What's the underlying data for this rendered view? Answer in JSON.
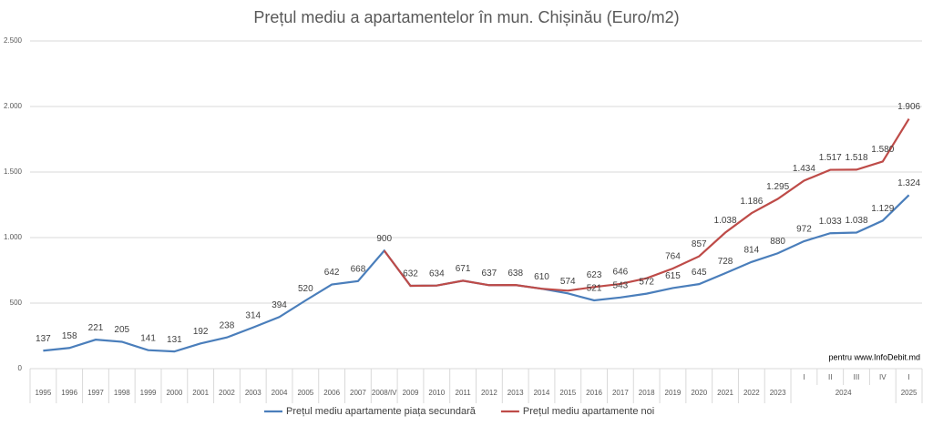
{
  "chart_data": {
    "type": "line",
    "title": "Prețul mediu a apartamentelor în mun. Chișinău (Euro/m2)",
    "annotation": "pentru www.InfoDebit.md",
    "categories": [
      "1995",
      "1996",
      "1997",
      "1998",
      "1999",
      "2000",
      "2001",
      "2002",
      "2003",
      "2004",
      "2005",
      "2006",
      "2007",
      "2008/IV",
      "2009",
      "2010",
      "2011",
      "2012",
      "2013",
      "2014",
      "2015",
      "2016",
      "2017",
      "2018",
      "2019",
      "2020",
      "2021",
      "2022",
      "2023",
      "I",
      "II",
      "III",
      "IV",
      "I"
    ],
    "category_groups": [
      null,
      null,
      null,
      null,
      null,
      null,
      null,
      null,
      null,
      null,
      null,
      null,
      null,
      null,
      null,
      null,
      null,
      null,
      null,
      null,
      null,
      null,
      null,
      null,
      null,
      null,
      null,
      null,
      null,
      "2024",
      "2024",
      "2024",
      "2024",
      "2025"
    ],
    "series": [
      {
        "name": "Prețul mediu apartamente piața secundară",
        "color": "#4a7ebb",
        "values": [
          137,
          158,
          221,
          205,
          141,
          131,
          192,
          238,
          314,
          394,
          520,
          642,
          668,
          900,
          632,
          634,
          671,
          637,
          638,
          610,
          574,
          521,
          543,
          572,
          615,
          645,
          728,
          814,
          880,
          972,
          1033,
          1038,
          1129,
          1324
        ],
        "value_labels": [
          "137",
          "158",
          "221",
          "205",
          "141",
          "131",
          "192",
          "238",
          "314",
          "394",
          "520",
          "642",
          "668",
          "900",
          null,
          null,
          null,
          null,
          null,
          null,
          "574",
          "521",
          "543",
          "572",
          "615",
          "645",
          "728",
          "814",
          "880",
          "972",
          "1.033",
          "1.038",
          "1.129",
          "1.324"
        ]
      },
      {
        "name": "Prețul mediu apartamente noi",
        "color": "#be4b48",
        "values": [
          null,
          null,
          null,
          null,
          null,
          null,
          null,
          null,
          null,
          null,
          null,
          null,
          null,
          900,
          632,
          634,
          671,
          637,
          638,
          610,
          595,
          623,
          646,
          690,
          764,
          857,
          1038,
          1186,
          1295,
          1434,
          1517,
          1518,
          1580,
          1906
        ],
        "value_labels": [
          null,
          null,
          null,
          null,
          null,
          null,
          null,
          null,
          null,
          null,
          null,
          null,
          null,
          null,
          "632",
          "634",
          "671",
          "637",
          "638",
          "610",
          null,
          "623",
          "646",
          null,
          "764",
          "857",
          "1.038",
          "1.186",
          "1.295",
          "1.434",
          "1.517",
          "1.518",
          "1.580",
          "1.906"
        ]
      }
    ],
    "ylim": [
      0,
      2500
    ],
    "yticks": [
      0,
      500,
      {
        "value": 1000,
        "label": "1.000"
      },
      {
        "value": 1500,
        "label": "1.500"
      },
      {
        "value": 2000,
        "label": "2.000"
      },
      {
        "value": 2500,
        "label": "2.500"
      }
    ],
    "grid": true,
    "legend": "bottom"
  }
}
